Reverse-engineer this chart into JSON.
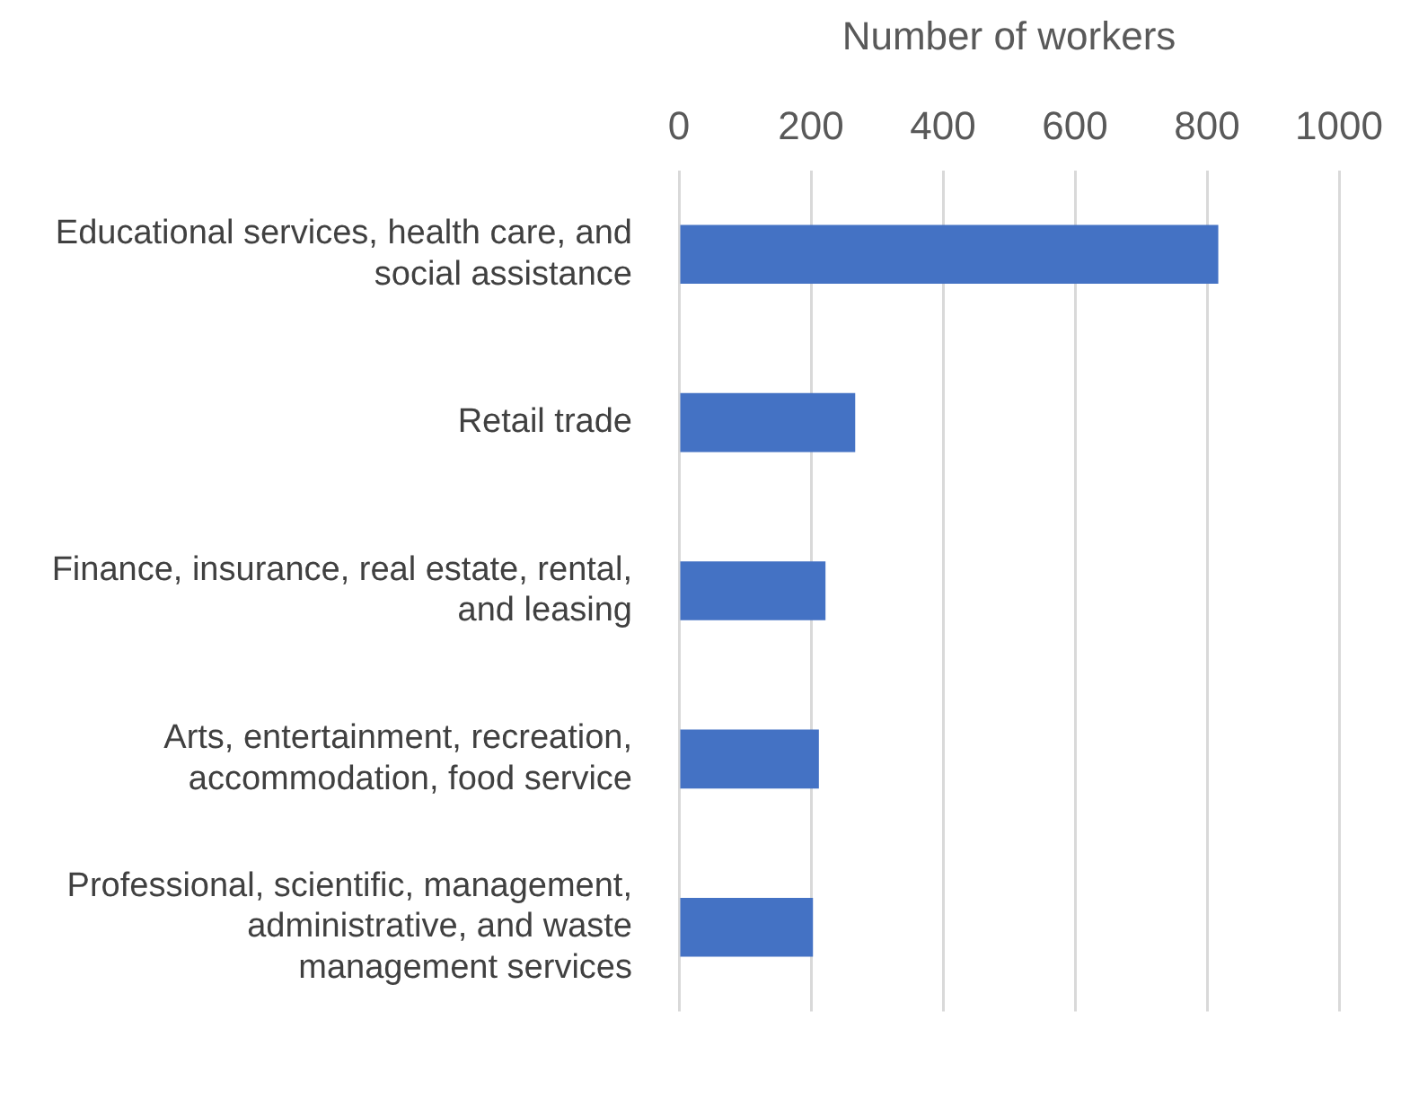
{
  "chart_data": {
    "type": "bar",
    "orientation": "horizontal",
    "xlabel": "Number of workers",
    "categories": [
      "Educational services, health care, and social assistance",
      "Retail trade",
      "Finance, insurance, real estate, rental, and leasing",
      "Arts, entertainment, recreation, accommodation, food service",
      "Professional, scientific, management, administrative, and waste management services"
    ],
    "values": [
      817,
      267,
      222,
      212,
      203
    ],
    "color": "#4472c4",
    "xlim": [
      0,
      1000
    ],
    "xticks": [
      0,
      200,
      400,
      600,
      800,
      1000
    ],
    "grid": "x",
    "legend": false
  }
}
